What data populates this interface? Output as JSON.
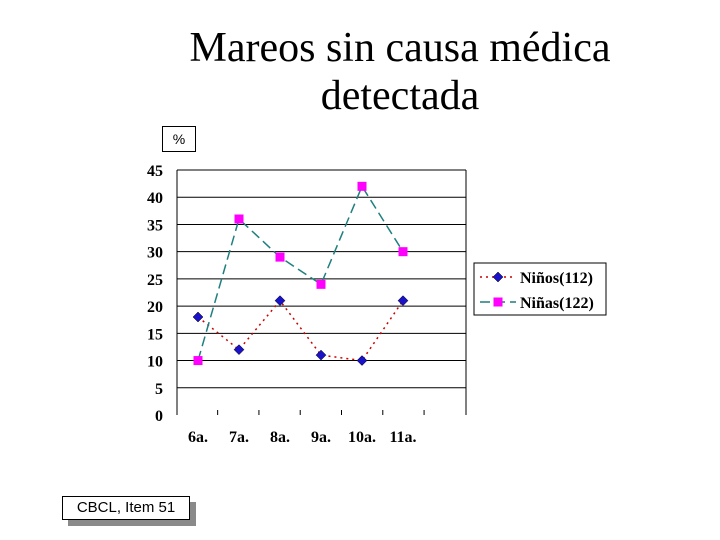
{
  "title": "Mareos sin causa médica detectada",
  "unit_label": "%",
  "source_label": "CBCL, Item 51",
  "chart_data": {
    "type": "line",
    "title": "Mareos sin causa médica detectada",
    "xlabel": "",
    "ylabel": "%",
    "categories": [
      "6a.",
      "7a.",
      "8a.",
      "9a.",
      "10a.",
      "11a."
    ],
    "ylim": [
      0,
      45
    ],
    "yticks": [
      0,
      5,
      10,
      15,
      20,
      25,
      30,
      35,
      40,
      45
    ],
    "grid": "horizontal",
    "legend_position": "right",
    "series": [
      {
        "name": "Niños(112)",
        "values": [
          18,
          12,
          21,
          11,
          10,
          21
        ],
        "color": "#cc0000",
        "marker_color": "#1a12c8",
        "marker": "diamond",
        "line_style": "dotted"
      },
      {
        "name": "Niñas(122)",
        "values": [
          10,
          36,
          29,
          24,
          42,
          30
        ],
        "color": "#1f7f7f",
        "marker_color": "#ff00ff",
        "marker": "square",
        "line_style": "dashed"
      }
    ]
  }
}
